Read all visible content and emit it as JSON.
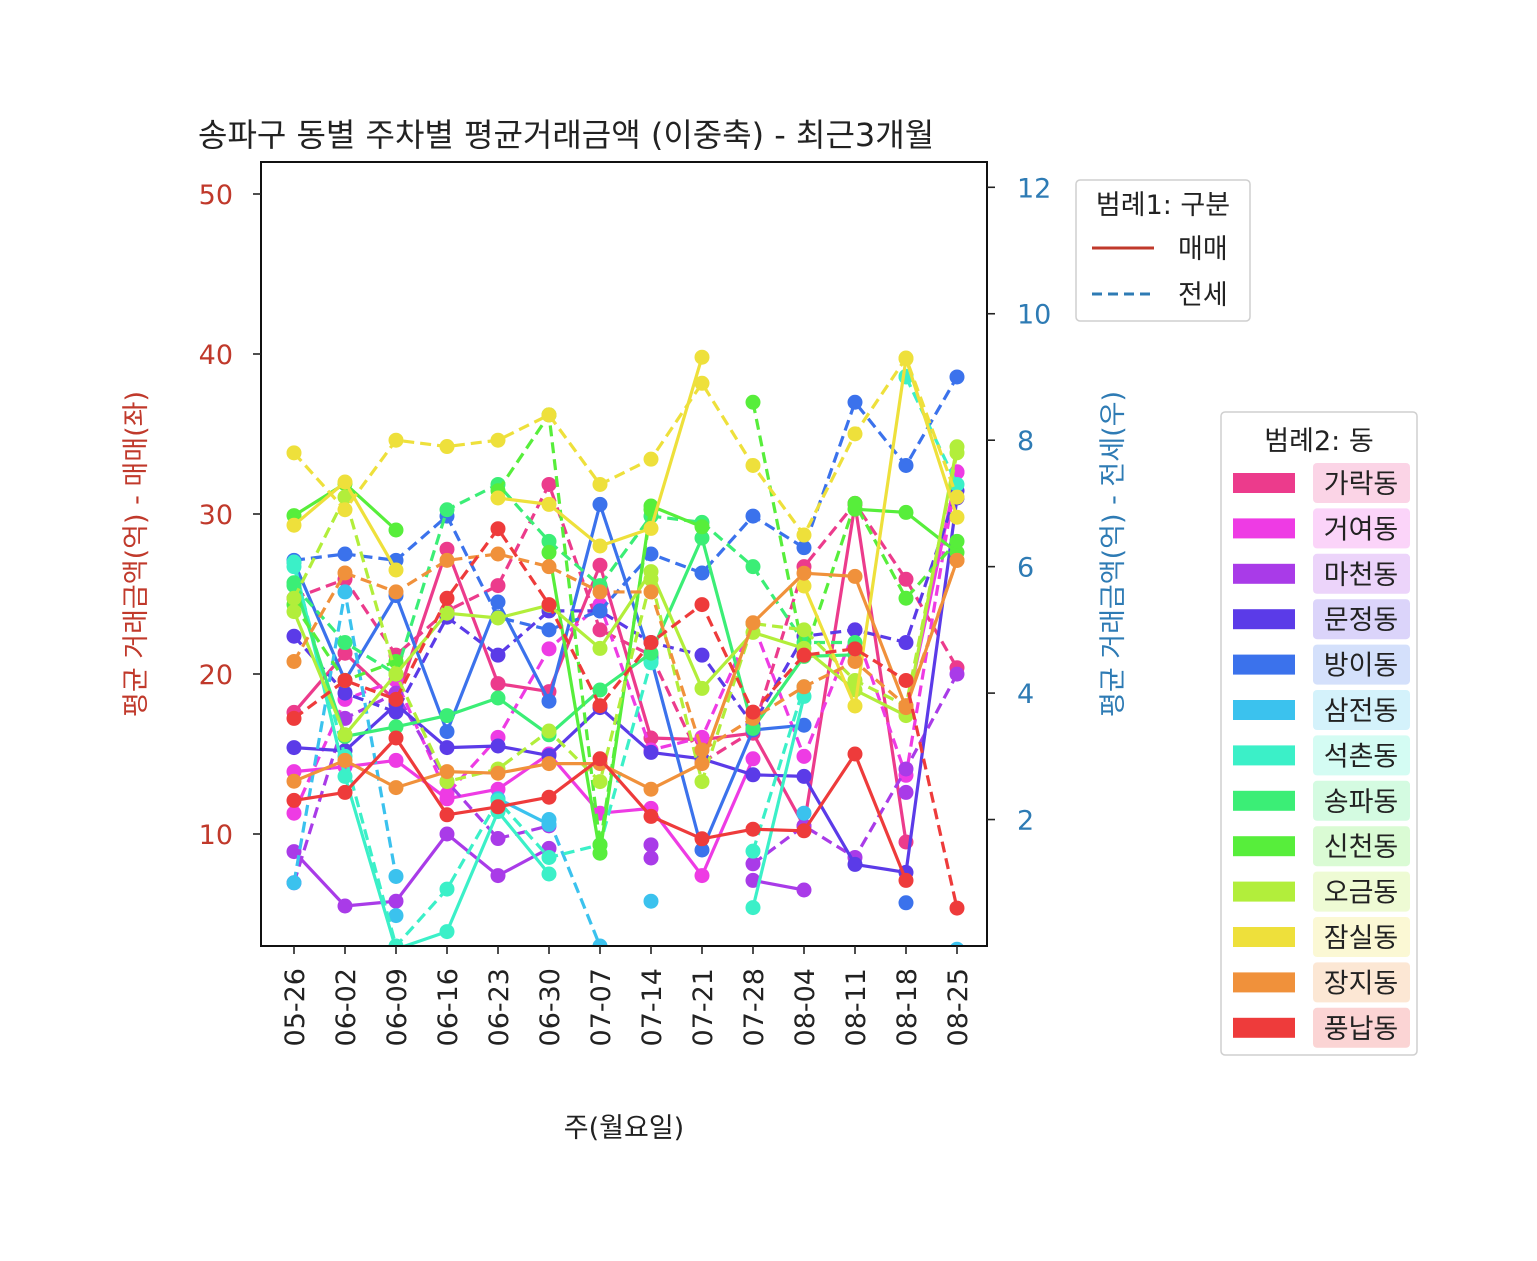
{
  "chart_data": {
    "type": "line",
    "title": "송파구 동별 주차별 평균거래금액 (이중축) - 최근3개월",
    "xlabel": "주(월요일)",
    "ylabel_left": "평균 거래금액(억) - 매매(좌)",
    "ylabel_right": "평균 거래금액(억) - 전세(우)",
    "left_color": "#c0392b",
    "right_color": "#2e7bb4",
    "categories": [
      "05-26",
      "06-02",
      "06-09",
      "06-16",
      "06-23",
      "06-30",
      "07-07",
      "07-14",
      "07-21",
      "07-28",
      "08-04",
      "08-11",
      "08-18",
      "08-25"
    ],
    "ylim_left": [
      3,
      52
    ],
    "ylim_right": [
      0,
      12.4
    ],
    "yticks_left": [
      10,
      20,
      30,
      40,
      50
    ],
    "yticks_right": [
      2,
      4,
      6,
      8,
      10,
      12
    ],
    "grid": false,
    "legend1": {
      "title": "범례1: 구분",
      "entries": [
        {
          "label": "매매",
          "style": "solid",
          "color": "#c0392b"
        },
        {
          "label": "전세",
          "style": "dashed",
          "color": "#2e7bb4"
        }
      ]
    },
    "legend2": {
      "title": "범례2: 동",
      "entries": [
        {
          "label": "가락동",
          "color": "#ec3b8c"
        },
        {
          "label": "거여동",
          "color": "#ee3be4"
        },
        {
          "label": "마천동",
          "color": "#a93be8"
        },
        {
          "label": "문정동",
          "color": "#5b3be8"
        },
        {
          "label": "방이동",
          "color": "#3b72ec"
        },
        {
          "label": "삼전동",
          "color": "#3bc2ee"
        },
        {
          "label": "석촌동",
          "color": "#3bf0c8"
        },
        {
          "label": "송파동",
          "color": "#3bee76"
        },
        {
          "label": "신천동",
          "color": "#57ee3b"
        },
        {
          "label": "오금동",
          "color": "#b2ee3b"
        },
        {
          "label": "잠실동",
          "color": "#eee03b"
        },
        {
          "label": "장지동",
          "color": "#f0913b"
        },
        {
          "label": "풍납동",
          "color": "#ee3b3b"
        }
      ]
    },
    "series": [
      {
        "name": "가락동",
        "color": "#ec3b8c",
        "sale": [
          17.6,
          21.3,
          18.3,
          27.8,
          19.4,
          18.9,
          26.8,
          16.0,
          15.9,
          16.3,
          10.5,
          30.6,
          9.5,
          null
        ],
        "jeonse": [
          5.5,
          5.8,
          4.6,
          5.3,
          5.7,
          7.3,
          5.0,
          4.6,
          2.9,
          3.4,
          6.0,
          7.0,
          5.8,
          4.4
        ]
      },
      {
        "name": "거여동",
        "color": "#ee3be4",
        "sale": [
          13.9,
          14.2,
          14.6,
          12.2,
          12.8,
          15.0,
          11.3,
          11.6,
          7.4,
          14.7,
          null,
          null,
          17.6,
          32.6
        ],
        "jeonse": [
          2.1,
          3.9,
          4.2,
          2.4,
          3.3,
          4.7,
          5.4,
          3.1,
          3.3,
          5.1,
          3.0,
          5.0,
          2.7,
          7.5
        ]
      },
      {
        "name": "마천동",
        "color": "#a93be8",
        "sale": [
          8.9,
          5.5,
          5.8,
          10.0,
          7.4,
          9.1,
          null,
          8.5,
          null,
          7.1,
          6.5,
          null,
          12.6,
          null
        ],
        "jeonse": [
          1.0,
          3.6,
          4.0,
          2.6,
          1.7,
          1.9,
          null,
          1.6,
          null,
          1.3,
          1.9,
          1.4,
          2.8,
          4.3
        ]
      },
      {
        "name": "문정동",
        "color": "#5b3be8",
        "sale": [
          15.4,
          15.2,
          18.1,
          15.4,
          15.5,
          14.9,
          17.9,
          15.1,
          14.7,
          13.7,
          13.6,
          8.1,
          7.6,
          31.0
        ],
        "jeonse": [
          4.9,
          4.0,
          3.7,
          5.2,
          4.6,
          5.3,
          5.3,
          4.8,
          4.6,
          3.5,
          4.9,
          5.0,
          4.8,
          7.2
        ]
      },
      {
        "name": "방이동",
        "color": "#3b72ec",
        "sale": [
          27.0,
          19.6,
          24.9,
          16.4,
          24.5,
          18.3,
          30.6,
          21.0,
          9.0,
          16.5,
          16.8,
          null,
          5.7,
          null
        ],
        "jeonse": [
          6.1,
          6.2,
          6.1,
          6.8,
          5.2,
          5.0,
          5.3,
          6.2,
          5.9,
          6.8,
          6.3,
          8.6,
          7.6,
          9.0
        ]
      },
      {
        "name": "삼전동",
        "color": "#3bc2ee",
        "sale": [
          null,
          null,
          4.9,
          null,
          12.2,
          10.6,
          null,
          5.8,
          null,
          null,
          null,
          null,
          null,
          2.8
        ],
        "jeonse": [
          1.0,
          5.6,
          1.1,
          null,
          null,
          2.0,
          0.0,
          null,
          null,
          null,
          2.1,
          null,
          null,
          null
        ]
      },
      {
        "name": "석촌동",
        "color": "#3bf0c8",
        "sale": [
          27.0,
          13.6,
          2.8,
          3.9,
          11.4,
          7.5,
          null,
          20.7,
          null,
          5.4,
          18.6,
          null,
          38.6,
          null
        ],
        "jeonse": [
          6.0,
          3.0,
          0.0,
          0.9,
          2.3,
          1.4,
          1.6,
          4.5,
          null,
          1.5,
          4.1,
          null,
          9.0,
          7.3
        ]
      },
      {
        "name": "송파동",
        "color": "#3bee76",
        "sale": [
          25.7,
          16.1,
          16.7,
          17.4,
          18.5,
          16.2,
          19.0,
          21.3,
          28.5,
          16.6,
          21.1,
          21.2,
          null,
          null
        ],
        "jeonse": [
          5.7,
          4.8,
          4.3,
          6.9,
          7.3,
          6.4,
          5.7,
          6.8,
          6.7,
          6.0,
          4.8,
          4.8,
          null,
          null
        ]
      },
      {
        "name": "신천동",
        "color": "#57ee3b",
        "sale": [
          29.9,
          31.9,
          29.0,
          null,
          null,
          27.6,
          8.8,
          30.5,
          29.2,
          null,
          null,
          30.3,
          30.1,
          27.6
        ],
        "jeonse": [
          5.4,
          4.2,
          4.5,
          null,
          7.2,
          8.4,
          1.6,
          6.9,
          null,
          8.6,
          4.6,
          7.0,
          5.5,
          6.4
        ]
      },
      {
        "name": "오금동",
        "color": "#b2ee3b",
        "sale": [
          23.9,
          16.2,
          20.0,
          23.8,
          23.5,
          24.3,
          21.6,
          26.4,
          19.1,
          22.6,
          21.6,
          19.0,
          17.4,
          34.2
        ],
        "jeonse": [
          5.5,
          7.1,
          4.3,
          2.6,
          2.8,
          3.4,
          2.6,
          5.8,
          2.6,
          5.1,
          5.0,
          4.2,
          3.8,
          7.8
        ]
      },
      {
        "name": "잠실동",
        "color": "#eee03b",
        "sale": [
          29.3,
          32.0,
          26.5,
          null,
          31.0,
          30.6,
          28.0,
          29.1,
          39.8,
          null,
          25.5,
          18.0,
          39.7,
          29.8
        ],
        "jeonse": [
          7.8,
          6.9,
          8.0,
          7.9,
          8.0,
          8.4,
          7.3,
          7.7,
          8.9,
          7.6,
          6.5,
          8.1,
          9.3,
          7.1
        ]
      },
      {
        "name": "장지동",
        "color": "#f0913b",
        "sale": [
          13.3,
          14.6,
          12.9,
          13.9,
          13.8,
          14.4,
          14.4,
          12.8,
          14.4,
          23.2,
          26.3,
          26.1,
          17.9,
          27.1
        ],
        "jeonse": [
          4.5,
          5.9,
          5.6,
          6.1,
          6.2,
          6.0,
          5.6,
          5.6,
          3.1,
          3.6,
          4.1,
          4.5,
          3.8,
          6.1
        ]
      },
      {
        "name": "풍납동",
        "color": "#ee3b3b",
        "sale": [
          12.1,
          12.6,
          16.0,
          11.2,
          11.7,
          12.3,
          14.7,
          11.1,
          9.7,
          10.3,
          10.2,
          15.0,
          7.1,
          null
        ],
        "jeonse": [
          3.6,
          4.2,
          3.9,
          5.5,
          6.6,
          5.4,
          3.8,
          4.8,
          5.4,
          3.7,
          4.6,
          4.7,
          4.2,
          0.6
        ]
      }
    ]
  }
}
